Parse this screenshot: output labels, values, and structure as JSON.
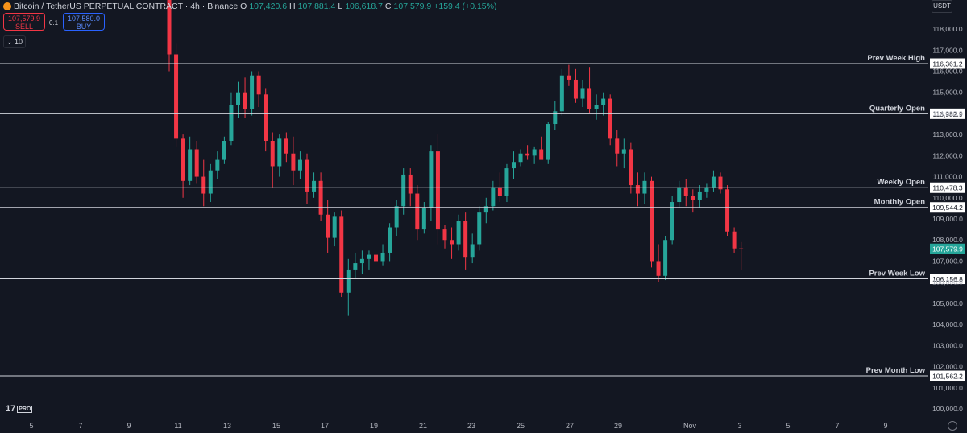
{
  "header": {
    "title": "Bitcoin / TetherUS PERPETUAL CONTRACT · 4h · Binance",
    "o_label": "O",
    "o_value": "107,420.6",
    "h_label": "H",
    "h_value": "107,881.4",
    "l_label": "L",
    "l_value": "106,618.7",
    "c_label": "C",
    "c_value": "107,579.9",
    "change": "+159.4 (+0.15%)"
  },
  "trade": {
    "sell_price": "107,579.9",
    "sell_label": "SELL",
    "spread": "0.1",
    "buy_price": "107,580.0",
    "buy_label": "BUY",
    "quantity": "10"
  },
  "currency": "USDT",
  "logo": {
    "text": "17",
    "badge": "PRO"
  },
  "colors": {
    "background": "#131722",
    "up": "#26a69a",
    "down": "#f23645",
    "level_line": "#d1d4dc",
    "grid_text": "#b2b5be"
  },
  "icons": {
    "coin": "bitcoin-icon",
    "settings": "gear-icon",
    "collapse": "chevron-down-icon"
  },
  "chart_data": {
    "type": "candlestick",
    "ylim": [
      99500,
      118500
    ],
    "y_ticks": [
      100000,
      101000,
      102000,
      103000,
      104000,
      105000,
      106000,
      107000,
      108000,
      109000,
      110000,
      111000,
      112000,
      113000,
      114000,
      115000,
      116000,
      117000,
      118000
    ],
    "y_tick_labels": [
      "100,000.0",
      "101,000.0",
      "102,000.0",
      "103,000.0",
      "104,000.0",
      "105,000.0",
      "106,000.0",
      "107,000.0",
      "108,000.0",
      "109,000.0",
      "110,000.0",
      "111,000.0",
      "112,000.0",
      "113,000.0",
      "114,000.0",
      "115,000.0",
      "116,000.0",
      "117,000.0",
      "118,000.0"
    ],
    "x_tick_labels": [
      "5",
      "7",
      "9",
      "11",
      "13",
      "15",
      "17",
      "19",
      "21",
      "23",
      "25",
      "27",
      "29",
      "Nov",
      "3",
      "5",
      "7",
      "9"
    ],
    "levels": [
      {
        "name": "Prev Week High",
        "value": 116361.2,
        "label": "116,361.2"
      },
      {
        "name": "Quarterly Open",
        "value": 113982.9,
        "label": "113,982.9"
      },
      {
        "name": "Weekly Open",
        "value": 110478.3,
        "label": "110,478.3"
      },
      {
        "name": "Monthly Open",
        "value": 109544.2,
        "label": "109,544.2"
      },
      {
        "name": "Prev Week Low",
        "value": 106156.8,
        "label": "106,156.8"
      },
      {
        "name": "Prev Month Low",
        "value": 101562.2,
        "label": "101,562.2"
      }
    ],
    "last_price": {
      "value": 107579.9,
      "label": "107,579.9"
    },
    "candles": [
      [
        121500,
        122500,
        116000,
        116800
      ],
      [
        116800,
        117300,
        112400,
        112800
      ],
      [
        112800,
        113000,
        110000,
        110800
      ],
      [
        110800,
        112900,
        110600,
        112300
      ],
      [
        112300,
        112700,
        110700,
        111000
      ],
      [
        111000,
        111800,
        109600,
        110200
      ],
      [
        110200,
        111600,
        109800,
        111300
      ],
      [
        111300,
        112200,
        110900,
        111800
      ],
      [
        111800,
        112900,
        111600,
        112700
      ],
      [
        112700,
        115000,
        112500,
        114400
      ],
      [
        114400,
        115500,
        113800,
        115000
      ],
      [
        115000,
        115700,
        113800,
        114200
      ],
      [
        114200,
        116000,
        113900,
        115800
      ],
      [
        115800,
        116000,
        114300,
        114900
      ],
      [
        114900,
        115200,
        112200,
        112700
      ],
      [
        112700,
        113100,
        110500,
        111500
      ],
      [
        111500,
        113000,
        111000,
        112800
      ],
      [
        112800,
        113100,
        111700,
        112100
      ],
      [
        112100,
        112900,
        110600,
        111300
      ],
      [
        111300,
        112200,
        110900,
        111800
      ],
      [
        111800,
        112100,
        109700,
        110300
      ],
      [
        110300,
        111200,
        110000,
        110800
      ],
      [
        110800,
        111200,
        108900,
        109200
      ],
      [
        109200,
        109900,
        107400,
        108100
      ],
      [
        108100,
        109300,
        107700,
        109100
      ],
      [
        109100,
        109400,
        105300,
        105500
      ],
      [
        105500,
        107100,
        104400,
        106600
      ],
      [
        106600,
        107400,
        106200,
        106900
      ],
      [
        106900,
        107500,
        106400,
        107100
      ],
      [
        107100,
        107500,
        106600,
        107300
      ],
      [
        107300,
        107600,
        106800,
        107000
      ],
      [
        107000,
        107800,
        106800,
        107400
      ],
      [
        107400,
        108800,
        107000,
        108600
      ],
      [
        108600,
        109900,
        108200,
        109600
      ],
      [
        109600,
        111400,
        109200,
        111100
      ],
      [
        111100,
        111400,
        109600,
        110200
      ],
      [
        110200,
        110600,
        108000,
        108500
      ],
      [
        108500,
        109800,
        108300,
        109500
      ],
      [
        109500,
        112500,
        108900,
        112200
      ],
      [
        112200,
        113000,
        107800,
        108500
      ],
      [
        108500,
        108700,
        107600,
        108000
      ],
      [
        108000,
        108600,
        107100,
        107800
      ],
      [
        107800,
        109200,
        107500,
        108900
      ],
      [
        108900,
        109300,
        106600,
        107200
      ],
      [
        107200,
        108300,
        106900,
        107800
      ],
      [
        107800,
        109600,
        107500,
        109300
      ],
      [
        109300,
        110000,
        108800,
        109600
      ],
      [
        109600,
        110800,
        109400,
        110500
      ],
      [
        110500,
        111200,
        109800,
        110100
      ],
      [
        110100,
        111600,
        109800,
        111400
      ],
      [
        111400,
        112200,
        110900,
        111700
      ],
      [
        111700,
        112300,
        111500,
        112100
      ],
      [
        112100,
        112500,
        111800,
        112000
      ],
      [
        112000,
        112400,
        111600,
        112300
      ],
      [
        112300,
        112900,
        111900,
        111800
      ],
      [
        111800,
        113600,
        111600,
        113500
      ],
      [
        113500,
        114600,
        113200,
        114100
      ],
      [
        114100,
        116100,
        113900,
        115800
      ],
      [
        115800,
        116300,
        115300,
        115600
      ],
      [
        115600,
        116100,
        114500,
        114700
      ],
      [
        114700,
        115600,
        114300,
        115200
      ],
      [
        115200,
        116200,
        114000,
        114200
      ],
      [
        114200,
        114900,
        113700,
        114400
      ],
      [
        114400,
        115000,
        113900,
        114700
      ],
      [
        114700,
        114900,
        112500,
        112800
      ],
      [
        112800,
        113200,
        111500,
        112100
      ],
      [
        112100,
        112800,
        111400,
        112300
      ],
      [
        112300,
        112600,
        110200,
        110600
      ],
      [
        110600,
        111200,
        109600,
        110200
      ],
      [
        110200,
        111200,
        109700,
        110800
      ],
      [
        110800,
        111000,
        106700,
        107000
      ],
      [
        107000,
        107800,
        106000,
        106300
      ],
      [
        106300,
        108200,
        106100,
        108000
      ],
      [
        108000,
        110100,
        107800,
        109800
      ],
      [
        109800,
        110800,
        109500,
        110500
      ],
      [
        110500,
        110900,
        109600,
        110100
      ],
      [
        110100,
        110400,
        109300,
        109900
      ],
      [
        109900,
        110600,
        109500,
        110300
      ],
      [
        110300,
        110700,
        110000,
        110500
      ],
      [
        110500,
        111300,
        110300,
        111000
      ],
      [
        111000,
        111200,
        110200,
        110400
      ],
      [
        110400,
        110600,
        108200,
        108400
      ],
      [
        108400,
        108600,
        107400,
        107600
      ],
      [
        107600,
        107900,
        106600,
        107580
      ]
    ]
  }
}
